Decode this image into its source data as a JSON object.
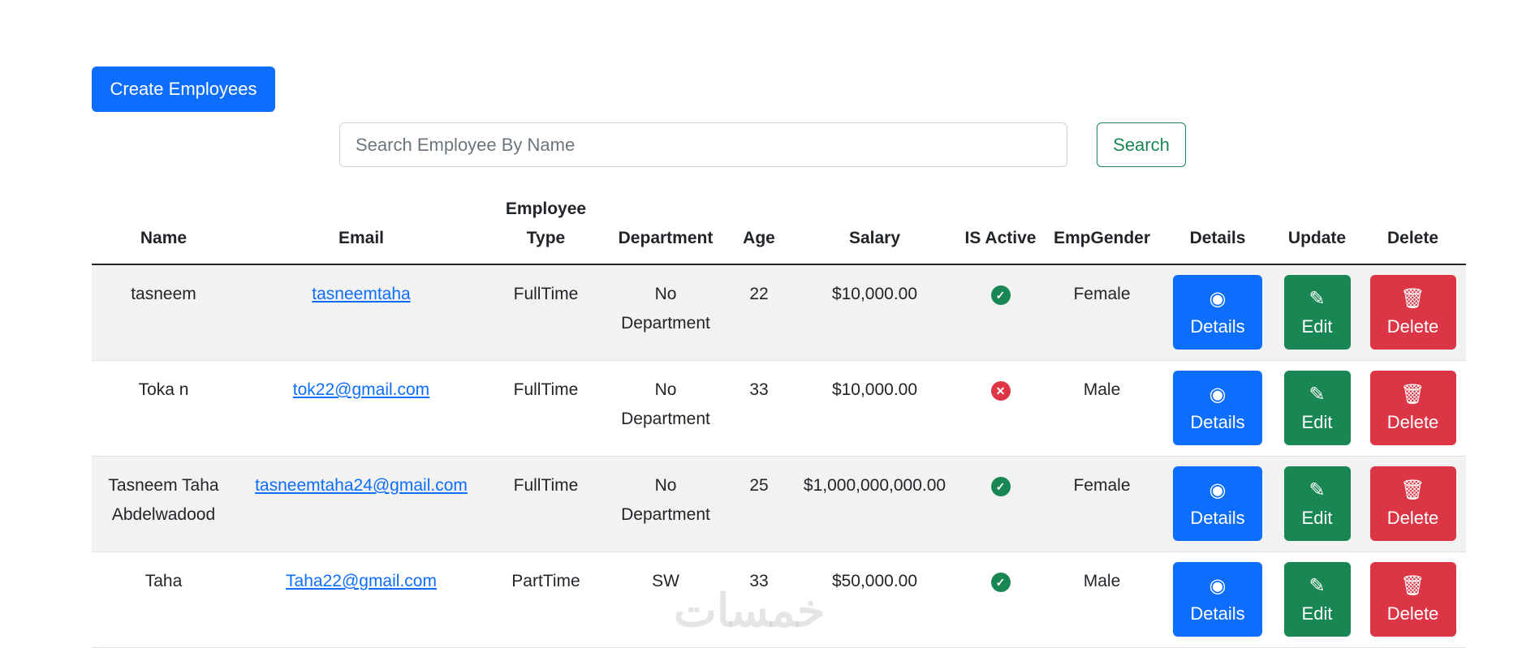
{
  "toolbar": {
    "create_label": "Create Employees"
  },
  "search": {
    "placeholder": "Search Employee By Name",
    "value": "",
    "button_label": "Search"
  },
  "table": {
    "headers": [
      "Name",
      "Email",
      "Employee Type",
      "Department",
      "Age",
      "Salary",
      "IS Active",
      "EmpGender",
      "Details",
      "Update",
      "Delete"
    ],
    "rows": [
      {
        "name": "tasneem",
        "email": "tasneemtaha",
        "type": "FullTime",
        "department": "No Department",
        "age": "22",
        "salary": "$10,000.00",
        "active": true,
        "gender": "Female"
      },
      {
        "name": "Toka n",
        "email": "tok22@gmail.com",
        "type": "FullTime",
        "department": "No Department",
        "age": "33",
        "salary": "$10,000.00",
        "active": false,
        "gender": "Male"
      },
      {
        "name": "Tasneem Taha Abdelwadood",
        "email": "tasneemtaha24@gmail.com",
        "type": "FullTime",
        "department": "No Department",
        "age": "25",
        "salary": "$1,000,000,000.00",
        "active": true,
        "gender": "Female"
      },
      {
        "name": "Taha",
        "email": "Taha22@gmail.com",
        "type": "PartTime",
        "department": "SW",
        "age": "33",
        "salary": "$50,000.00",
        "active": true,
        "gender": "Male"
      }
    ],
    "actions": {
      "details": "Details",
      "edit": "Edit",
      "delete": "Delete"
    }
  },
  "colors": {
    "primary": "#0d6efd",
    "success": "#198754",
    "danger": "#dc3545"
  },
  "icons": {
    "active": "check-circle-icon",
    "inactive": "x-circle-icon",
    "details": "eye-icon",
    "edit": "pencil-square-icon",
    "delete": "trash-icon"
  },
  "watermark": "خمسات"
}
